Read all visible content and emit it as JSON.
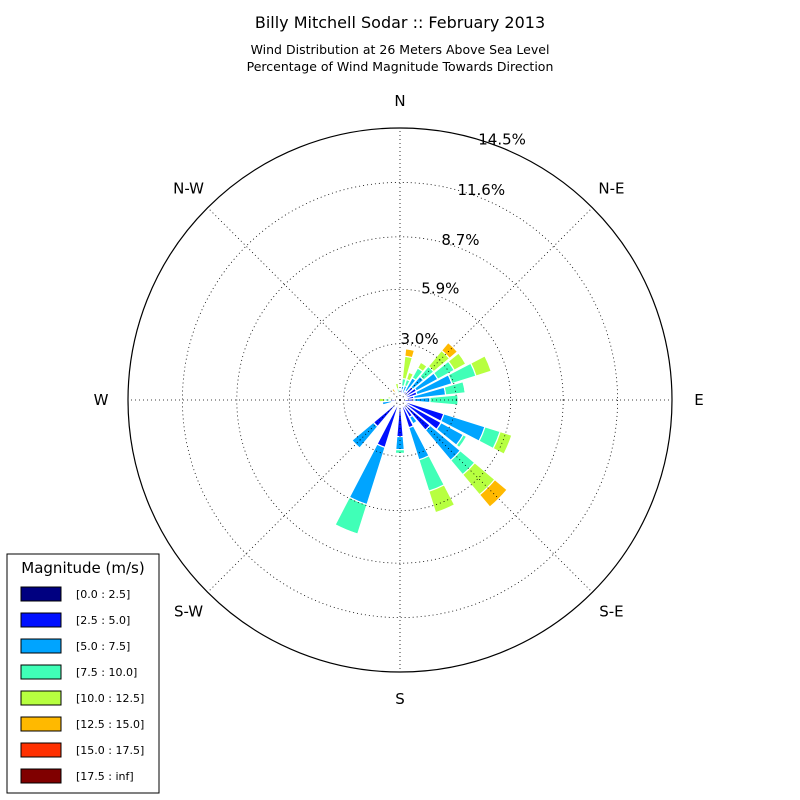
{
  "chart_data": {
    "type": "windrose",
    "title": "Billy Mitchell Sodar :: February 2013",
    "subtitle_lines": [
      "Wind Distribution at 26 Meters Above Sea Level",
      "Percentage of Wind Magnitude Towards Direction"
    ],
    "direction_labels": [
      {
        "label": "N",
        "angle": 0
      },
      {
        "label": "N-E",
        "angle": 45
      },
      {
        "label": "E",
        "angle": 90
      },
      {
        "label": "S-E",
        "angle": 135
      },
      {
        "label": "S",
        "angle": 180
      },
      {
        "label": "S-W",
        "angle": 225
      },
      {
        "label": "W",
        "angle": 270
      },
      {
        "label": "N-W",
        "angle": 315
      }
    ],
    "ring_values": [
      3.0,
      5.9,
      8.7,
      11.6,
      14.5
    ],
    "ring_labels": [
      "3.0%",
      "5.9%",
      "8.7%",
      "11.6%",
      "14.5%"
    ],
    "r_max": 14.5,
    "legend": {
      "title": "Magnitude (m/s)",
      "placement": "lower-left",
      "bins": [
        {
          "label": "[0.0 : 2.5]",
          "color": "#000080"
        },
        {
          "label": "[2.5 : 5.0]",
          "color": "#0010ff"
        },
        {
          "label": "[5.0 : 7.5]",
          "color": "#00a4ff"
        },
        {
          "label": "[7.5 : 10.0]",
          "color": "#40ffb7"
        },
        {
          "label": "[10.0 : 12.5]",
          "color": "#b7ff40"
        },
        {
          "label": "[12.5 : 15.0]",
          "color": "#ffb900"
        },
        {
          "label": "[15.0 : 17.5]",
          "color": "#ff3000"
        },
        {
          "label": "[17.5 : inf]",
          "color": "#800000"
        }
      ]
    },
    "sectors": [
      {
        "direction": 0,
        "cumulative": [
          0,
          0.25,
          0.45,
          0.55,
          0.55,
          0.55,
          0.55,
          0.55
        ]
      },
      {
        "direction": 11.25,
        "cumulative": [
          0,
          0.55,
          0.75,
          1.15,
          2.35,
          2.75,
          2.75,
          2.75
        ]
      },
      {
        "direction": 22.5,
        "cumulative": [
          0,
          0.35,
          0.8,
          1.15,
          1.55,
          1.55,
          1.55,
          1.55
        ]
      },
      {
        "direction": 33.75,
        "cumulative": [
          0,
          0.55,
          1.35,
          1.95,
          2.3,
          2.3,
          2.3,
          2.3
        ]
      },
      {
        "direction": 45,
        "cumulative": [
          0,
          0.9,
          1.65,
          2.35,
          3.45,
          4.0,
          4.0,
          4.0
        ]
      },
      {
        "direction": 56.25,
        "cumulative": [
          0,
          1.0,
          2.3,
          3.3,
          4.0,
          4.0,
          4.0,
          4.0
        ]
      },
      {
        "direction": 67.5,
        "cumulative": [
          0,
          0.95,
          2.9,
          4.25,
          5.1,
          5.1,
          5.1,
          5.1
        ]
      },
      {
        "direction": 78.75,
        "cumulative": [
          0,
          0.75,
          2.45,
          3.5,
          3.55,
          3.55,
          3.55,
          3.55
        ]
      },
      {
        "direction": 90,
        "cumulative": [
          0,
          0.75,
          1.6,
          3.1,
          3.15,
          3.15,
          3.15,
          3.15
        ]
      },
      {
        "direction": 101.25,
        "cumulative": [
          0,
          0.25,
          0.25,
          0.25,
          0.25,
          0.25,
          0.25,
          0.25
        ]
      },
      {
        "direction": 112.5,
        "cumulative": [
          0,
          2.45,
          4.75,
          5.6,
          6.25,
          6.25,
          6.25,
          6.25
        ]
      },
      {
        "direction": 123.75,
        "cumulative": [
          0,
          2.5,
          3.85,
          4.05,
          4.05,
          4.05,
          4.05,
          4.05
        ]
      },
      {
        "direction": 135,
        "cumulative": [
          0,
          2.1,
          4.2,
          5.2,
          6.6,
          7.45,
          7.45,
          7.45
        ]
      },
      {
        "direction": 146.25,
        "cumulative": [
          0,
          1.05,
          1.45,
          1.45,
          1.45,
          1.45,
          1.45,
          1.45
        ]
      },
      {
        "direction": 157.5,
        "cumulative": [
          0,
          1.55,
          3.35,
          5.1,
          6.3,
          6.3,
          6.3,
          6.3
        ]
      },
      {
        "direction": 168.75,
        "cumulative": [
          0,
          0.35,
          0.35,
          0.35,
          0.35,
          0.35,
          0.35,
          0.35
        ]
      },
      {
        "direction": 180,
        "cumulative": [
          0,
          1.95,
          2.65,
          2.85,
          2.85,
          2.85,
          2.85,
          2.85
        ]
      },
      {
        "direction": 191.25,
        "cumulative": [
          0,
          0.45,
          0.45,
          0.45,
          0.45,
          0.45,
          0.45,
          0.45
        ]
      },
      {
        "direction": 202.5,
        "cumulative": [
          0,
          2.65,
          5.85,
          7.5,
          7.55,
          7.55,
          7.55,
          7.55
        ]
      },
      {
        "direction": 213.75,
        "cumulative": [
          0,
          0.4,
          0.4,
          0.4,
          0.4,
          0.4,
          0.4,
          0.4
        ]
      },
      {
        "direction": 225,
        "cumulative": [
          0,
          1.85,
          3.35,
          3.4,
          3.4,
          3.4,
          3.4,
          3.4
        ]
      },
      {
        "direction": 236.25,
        "cumulative": [
          0,
          0.3,
          0.3,
          0.3,
          0.3,
          0.3,
          0.3,
          0.3
        ]
      },
      {
        "direction": 247.5,
        "cumulative": [
          0,
          0.3,
          0.3,
          0.3,
          0.3,
          0.3,
          0.3,
          0.3
        ]
      },
      {
        "direction": 258.75,
        "cumulative": [
          0,
          0.45,
          0.95,
          0.95,
          0.95,
          0.95,
          0.95,
          0.95
        ]
      },
      {
        "direction": 270,
        "cumulative": [
          0,
          0.5,
          0.55,
          0.8,
          1.1,
          1.1,
          1.1,
          1.1
        ]
      },
      {
        "direction": 281.25,
        "cumulative": [
          0,
          0.3,
          0.3,
          0.5,
          0.65,
          0.65,
          0.65,
          0.65
        ]
      },
      {
        "direction": 292.5,
        "cumulative": [
          0,
          0.35,
          0.35,
          0.35,
          0.35,
          0.35,
          0.35,
          0.35
        ]
      },
      {
        "direction": 303.75,
        "cumulative": [
          0,
          0.3,
          0.3,
          0.3,
          0.3,
          0.3,
          0.3,
          0.3
        ]
      },
      {
        "direction": 315,
        "cumulative": [
          0,
          0.25,
          0.25,
          0.25,
          0.25,
          0.25,
          0.25,
          0.25
        ]
      },
      {
        "direction": 326.25,
        "cumulative": [
          0,
          0.3,
          0.3,
          0.3,
          0.5,
          0.7,
          0.7,
          0.7
        ]
      },
      {
        "direction": 337.5,
        "cumulative": [
          0,
          0.3,
          0.3,
          0.35,
          0.35,
          0.35,
          0.35,
          0.35
        ]
      },
      {
        "direction": 348.75,
        "cumulative": [
          0,
          0.35,
          0.35,
          0.6,
          0.9,
          0.9,
          0.9,
          0.9
        ]
      }
    ]
  }
}
